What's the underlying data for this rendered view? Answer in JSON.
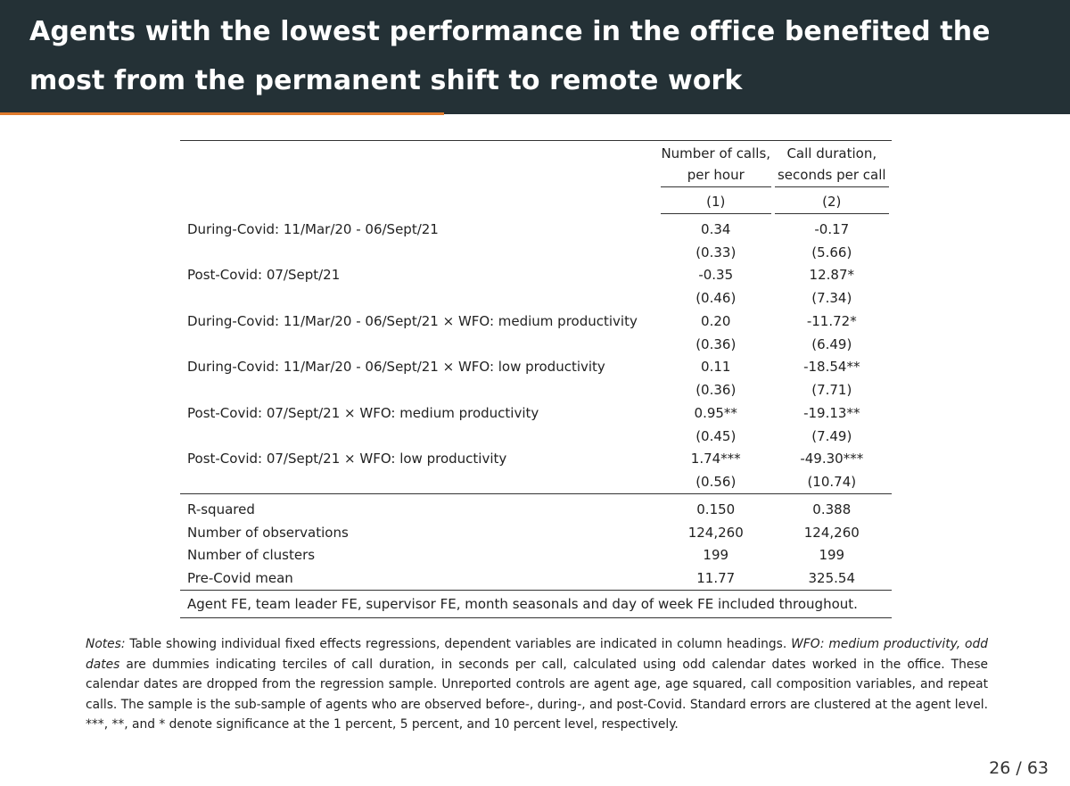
{
  "title": "Agents with the lowest performance in the office benefited the most from the permanent shift to remote work",
  "columns": [
    {
      "head_line1": "Number of calls,",
      "head_line2": "per hour",
      "number": "(1)"
    },
    {
      "head_line1": "Call duration,",
      "head_line2": "seconds per call",
      "number": "(2)"
    }
  ],
  "rows": [
    {
      "label": "During-Covid: 11/Mar/20 - 06/Sept/21",
      "c1": "0.34",
      "c2": "-0.17",
      "se1": "(0.33)",
      "se2": "(5.66)"
    },
    {
      "label": "Post-Covid: 07/Sept/21",
      "c1": "-0.35",
      "c2": "12.87*",
      "se1": "(0.46)",
      "se2": "(7.34)"
    },
    {
      "label": "During-Covid: 11/Mar/20 - 06/Sept/21 × WFO: medium productivity",
      "c1": "0.20",
      "c2": "-11.72*",
      "se1": "(0.36)",
      "se2": "(6.49)"
    },
    {
      "label": "During-Covid: 11/Mar/20 - 06/Sept/21 × WFO: low productivity",
      "c1": "0.11",
      "c2": "-18.54**",
      "se1": "(0.36)",
      "se2": "(7.71)"
    },
    {
      "label": "Post-Covid: 07/Sept/21 × WFO: medium productivity",
      "c1": "0.95**",
      "c2": "-19.13**",
      "se1": "(0.45)",
      "se2": "(7.49)"
    },
    {
      "label": "Post-Covid: 07/Sept/21 × WFO: low productivity",
      "c1": "1.74***",
      "c2": "-49.30***",
      "se1": "(0.56)",
      "se2": "(10.74)"
    }
  ],
  "stats": [
    {
      "label": "R-squared",
      "c1": "0.150",
      "c2": "0.388"
    },
    {
      "label": "Number of observations",
      "c1": "124,260",
      "c2": "124,260"
    },
    {
      "label": "Number of clusters",
      "c1": "199",
      "c2": "199"
    },
    {
      "label": "Pre-Covid mean",
      "c1": "11.77",
      "c2": "325.54"
    }
  ],
  "footer": "Agent FE, team leader FE, supervisor FE, month seasonals and day of week FE included throughout.",
  "notes": {
    "label": "Notes:",
    "part1": " Table showing individual fixed effects regressions, dependent variables are indicated in column headings. ",
    "italic": "WFO: medium productivity, odd dates",
    "part2": " are dummies indicating terciles of call duration, in seconds per call, calculated using odd calendar dates worked in the office. These calendar dates are dropped from the regression sample. Unreported controls are agent age, age squared, call composition variables, and repeat calls. The sample is the sub-sample of agents who are observed before-, during-, and post-Covid. Standard errors are clustered at the agent level. ***, **, and * denote significance at the 1 percent, 5 percent, and 10 percent level, respectively."
  },
  "page_number": "26 / 63",
  "colors": {
    "title_bar": "#243136",
    "accent": "#e07a2c"
  }
}
